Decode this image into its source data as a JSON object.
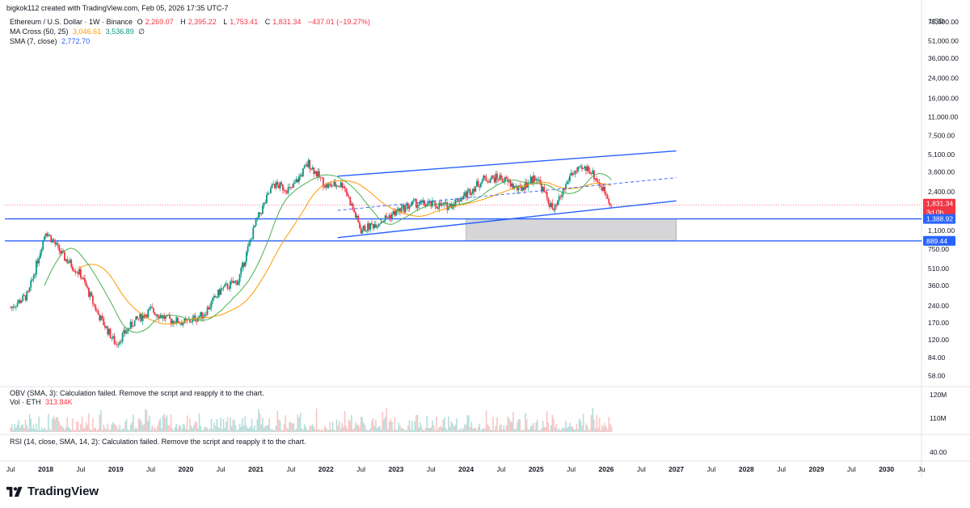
{
  "header": {
    "byline": "bigkok112 created with TradingView.com, Feb 05, 2026 17:35 UTC-7",
    "symbol": "Ethereum / U.S. Dollar · 1W · Binance",
    "o_label": "O",
    "o_value": "2,269.07",
    "h_label": "H",
    "h_value": "2,395.22",
    "l_label": "L",
    "l_value": "1,753.41",
    "c_label": "C",
    "c_value": "1,831.34",
    "change": "−437.01 (−19.27%)",
    "ma_cross_label": "MA Cross (50, 25)",
    "ma_cross_v1": "3,046.61",
    "ma_cross_v2": "3,536.89",
    "ma_cross_icon": "∅",
    "sma_label": "SMA (7, close)",
    "sma_value": "2,772.70"
  },
  "currency": "USD",
  "price_axis": {
    "ticks": [
      "75,000.00",
      "51,000.00",
      "36,000.00",
      "24,000.00",
      "16,000.00",
      "11,000.00",
      "7,500.00",
      "5,100.00",
      "3,600.00",
      "2,400.00",
      "1,100.00",
      "750.00",
      "510.00",
      "360.00",
      "240.00",
      "170.00",
      "120.00",
      "84.00",
      "58.00"
    ],
    "tick_values": [
      75000,
      51000,
      36000,
      24000,
      16000,
      11000,
      7500,
      5100,
      3600,
      2400,
      1100,
      750,
      510,
      360,
      240,
      170,
      120,
      84,
      58
    ],
    "last_price": "1,831.34",
    "countdown": "3d 0h",
    "level_upper": "1,388.92",
    "level_lower": "889.44"
  },
  "time_axis": {
    "labels": [
      "Jul",
      "2018",
      "Jul",
      "2019",
      "Jul",
      "2020",
      "Jul",
      "2021",
      "Jul",
      "2022",
      "Jul",
      "2023",
      "Jul",
      "2024",
      "Jul",
      "2025",
      "Jul",
      "2026",
      "Jul",
      "2027",
      "Jul",
      "2028",
      "Jul",
      "2029",
      "Jul",
      "2030",
      "Ju"
    ],
    "bold": [
      "2018",
      "2019",
      "2020",
      "2021",
      "2022",
      "2023",
      "2024",
      "2025",
      "2026",
      "2027",
      "2028",
      "2029",
      "2030"
    ]
  },
  "obv_pane": {
    "label": "OBV (SMA, 3): Calculation failed. Remove the script and reapply it to the chart.",
    "vol_label": "Vol · ETH",
    "vol_value": "313.84K",
    "ticks": [
      "120M",
      "110M"
    ]
  },
  "rsi_pane": {
    "label": "RSI (14, close, SMA, 14, 2): Calculation failed. Remove the script and reapply it to the chart.",
    "ticks": [
      "40.00"
    ]
  },
  "brand": "TradingView",
  "colors": {
    "up": "#089981",
    "down": "#f23645",
    "channel": "#2962ff",
    "ma_slow": "#ff9800",
    "ma_fast": "#4caf50",
    "volume": "#f7c6c6"
  },
  "chart_data": {
    "type": "candlestick",
    "timeframe": "1W",
    "scale": "log",
    "y_axis_label": "USD",
    "x_range": [
      "2017-06",
      "2030-07"
    ],
    "y_range": [
      48,
      90000
    ],
    "monthly_close_approx": [
      [
        "2017-07",
        230
      ],
      [
        "2017-10",
        300
      ],
      [
        "2018-01",
        1100
      ],
      [
        "2018-04",
        650
      ],
      [
        "2018-07",
        450
      ],
      [
        "2018-10",
        200
      ],
      [
        "2019-01",
        110
      ],
      [
        "2019-04",
        170
      ],
      [
        "2019-07",
        220
      ],
      [
        "2019-10",
        180
      ],
      [
        "2020-01",
        170
      ],
      [
        "2020-04",
        200
      ],
      [
        "2020-07",
        330
      ],
      [
        "2020-10",
        400
      ],
      [
        "2021-01",
        1300
      ],
      [
        "2021-04",
        2800
      ],
      [
        "2021-07",
        2500
      ],
      [
        "2021-10",
        4300
      ],
      [
        "2022-01",
        2700
      ],
      [
        "2022-04",
        2800
      ],
      [
        "2022-07",
        1100
      ],
      [
        "2022-10",
        1300
      ],
      [
        "2023-01",
        1600
      ],
      [
        "2023-04",
        1900
      ],
      [
        "2023-07",
        1850
      ],
      [
        "2023-10",
        1800
      ],
      [
        "2024-01",
        2300
      ],
      [
        "2024-04",
        3100
      ],
      [
        "2024-07",
        3200
      ],
      [
        "2024-10",
        2500
      ],
      [
        "2025-01",
        3300
      ],
      [
        "2025-04",
        1600
      ],
      [
        "2025-07",
        3500
      ],
      [
        "2025-10",
        3900
      ],
      [
        "2026-01",
        2300
      ],
      [
        "2026-02",
        1831.34
      ]
    ],
    "horizontal_levels": [
      1388.92,
      889.44
    ],
    "channel": {
      "upper": [
        [
          "2022-03",
          3300
        ],
        [
          "2027-01",
          5500
        ]
      ],
      "lower": [
        [
          "2022-03",
          950
        ],
        [
          "2027-01",
          2000
        ]
      ],
      "mid": [
        [
          "2022-03",
          1650
        ],
        [
          "2027-01",
          3200
        ]
      ]
    },
    "zone": {
      "from": "2024-01",
      "to": "2027-01",
      "low": 889.44,
      "high": 1388.92
    }
  }
}
